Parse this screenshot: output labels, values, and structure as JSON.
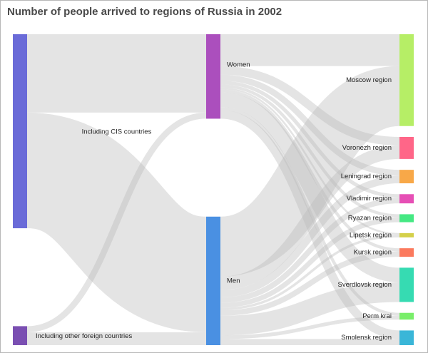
{
  "title": "Number of people arrived to regions of Russia in 2002",
  "chart_data": {
    "type": "sankey",
    "title": "Number of people arrived to regions of Russia in 2002",
    "nodes": [
      {
        "id": "cis",
        "label": "Including CIS countries",
        "color": "#6a6bd8"
      },
      {
        "id": "other",
        "label": "Including other foreign countries",
        "color": "#7a4fb2"
      },
      {
        "id": "women",
        "label": "Women",
        "color": "#ab4fbd"
      },
      {
        "id": "men",
        "label": "Men",
        "color": "#4a90e2"
      },
      {
        "id": "moscow",
        "label": "Moscow region",
        "color": "#b6ee66"
      },
      {
        "id": "voronezh",
        "label": "Voronezh region",
        "color": "#ff6688"
      },
      {
        "id": "leningrad",
        "label": "Leningrad region",
        "color": "#f8a848"
      },
      {
        "id": "vladimir",
        "label": "Vladimir region",
        "color": "#e64fb5"
      },
      {
        "id": "ryazan",
        "label": "Ryazan region",
        "color": "#45e883"
      },
      {
        "id": "lipetsk",
        "label": "Lipetsk region",
        "color": "#d4d04a"
      },
      {
        "id": "kursk",
        "label": "Kursk region",
        "color": "#fb7a5e"
      },
      {
        "id": "sverdlovsk",
        "label": "Sverdlovsk region",
        "color": "#36dbb2"
      },
      {
        "id": "perm",
        "label": "Perm krai",
        "color": "#79ee6a"
      },
      {
        "id": "smolensk",
        "label": "Smolensk region",
        "color": "#3ab6d8"
      }
    ],
    "links": [
      {
        "source": "cis",
        "target": "women",
        "value": 128
      },
      {
        "source": "cis",
        "target": "men",
        "value": 189
      },
      {
        "source": "other",
        "target": "women",
        "value": 10
      },
      {
        "source": "other",
        "target": "men",
        "value": 21
      },
      {
        "source": "women",
        "target": "moscow",
        "value": 52
      },
      {
        "source": "women",
        "target": "voronezh",
        "value": 14
      },
      {
        "source": "women",
        "target": "leningrad",
        "value": 10
      },
      {
        "source": "women",
        "target": "vladimir",
        "value": 6
      },
      {
        "source": "women",
        "target": "ryazan",
        "value": 5
      },
      {
        "source": "women",
        "target": "lipetsk",
        "value": 3
      },
      {
        "source": "women",
        "target": "kursk",
        "value": 5
      },
      {
        "source": "women",
        "target": "sverdlovsk",
        "value": 24
      },
      {
        "source": "women",
        "target": "perm",
        "value": 5
      },
      {
        "source": "women",
        "target": "smolensk",
        "value": 14
      },
      {
        "source": "men",
        "target": "moscow",
        "value": 98
      },
      {
        "source": "men",
        "target": "voronezh",
        "value": 22
      },
      {
        "source": "men",
        "target": "leningrad",
        "value": 12
      },
      {
        "source": "men",
        "target": "vladimir",
        "value": 9
      },
      {
        "source": "men",
        "target": "ryazan",
        "value": 8
      },
      {
        "source": "men",
        "target": "lipetsk",
        "value": 4
      },
      {
        "source": "men",
        "target": "kursk",
        "value": 9
      },
      {
        "source": "men",
        "target": "sverdlovsk",
        "value": 32
      },
      {
        "source": "men",
        "target": "perm",
        "value": 6
      },
      {
        "source": "men",
        "target": "smolensk",
        "value": 10
      }
    ],
    "link_color": "#b8b8b8"
  }
}
